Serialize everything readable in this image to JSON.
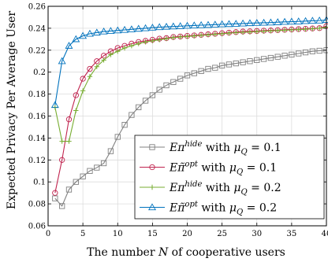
{
  "chart_data": {
    "type": "line",
    "xlabel_prefix": "The number ",
    "xlabel_var": "N",
    "xlabel_suffix": " of cooperative users",
    "ylabel": "Expected Privacy Per Average User",
    "xlim": [
      0,
      40
    ],
    "ylim": [
      0.06,
      0.26
    ],
    "xticks": [
      0,
      5,
      10,
      15,
      20,
      25,
      30,
      35,
      40
    ],
    "yticks": [
      0.06,
      0.08,
      0.1,
      0.12,
      0.14,
      0.16,
      0.18,
      0.2,
      0.22,
      0.24,
      0.26
    ],
    "xtick_labels": [
      "0",
      "5",
      "10",
      "15",
      "20",
      "25",
      "30",
      "35",
      "40"
    ],
    "ytick_labels": [
      "0.06",
      "0.08",
      "0.1",
      "0.12",
      "0.14",
      "0.16",
      "0.18",
      "0.2",
      "0.22",
      "0.24",
      "0.26"
    ],
    "grid": true,
    "legend_position": "bottom-right",
    "x": [
      1,
      2,
      3,
      4,
      5,
      6,
      7,
      8,
      9,
      10,
      11,
      12,
      13,
      14,
      15,
      16,
      17,
      18,
      19,
      20,
      21,
      22,
      23,
      24,
      25,
      26,
      27,
      28,
      29,
      30,
      31,
      32,
      33,
      34,
      35,
      36,
      37,
      38,
      39,
      40
    ],
    "series": [
      {
        "name_var": "Eπ",
        "name_sup": "hide",
        "name_mid": " with ",
        "name_mu": "μ",
        "name_sub": "Q",
        "name_eq": " = 0.1",
        "color": "#808080",
        "marker": "square",
        "values": [
          0.085,
          0.078,
          0.093,
          0.1,
          0.105,
          0.11,
          0.113,
          0.117,
          0.128,
          0.141,
          0.152,
          0.161,
          0.168,
          0.174,
          0.179,
          0.184,
          0.188,
          0.191,
          0.194,
          0.197,
          0.199,
          0.201,
          0.203,
          0.204,
          0.206,
          0.207,
          0.208,
          0.209,
          0.21,
          0.211,
          0.212,
          0.213,
          0.214,
          0.215,
          0.216,
          0.217,
          0.218,
          0.219,
          0.2195,
          0.22
        ]
      },
      {
        "name_var": "Eπ̃",
        "name_sup": "opt",
        "name_mid": " with ",
        "name_mu": "μ",
        "name_sub": "Q",
        "name_eq": " = 0.1",
        "color": "#c0234e",
        "marker": "circle",
        "values": [
          0.09,
          0.12,
          0.157,
          0.179,
          0.194,
          0.203,
          0.21,
          0.215,
          0.219,
          0.222,
          0.224,
          0.226,
          0.2275,
          0.2285,
          0.2295,
          0.2305,
          0.231,
          0.232,
          0.2325,
          0.233,
          0.2335,
          0.234,
          0.2345,
          0.235,
          0.2355,
          0.236,
          0.2365,
          0.237,
          0.2372,
          0.2375,
          0.2378,
          0.238,
          0.2383,
          0.2386,
          0.2389,
          0.2392,
          0.2395,
          0.2398,
          0.2401,
          0.242
        ]
      },
      {
        "name_var": "Eπ",
        "name_sup": "hide",
        "name_mid": " with ",
        "name_mu": "μ",
        "name_sub": "Q",
        "name_eq": " = 0.2",
        "color": "#77ac30",
        "marker": "plus",
        "values": [
          0.168,
          0.137,
          0.137,
          0.165,
          0.183,
          0.196,
          0.205,
          0.211,
          0.216,
          0.219,
          0.222,
          0.224,
          0.226,
          0.2275,
          0.2285,
          0.2295,
          0.2305,
          0.2315,
          0.232,
          0.2325,
          0.233,
          0.2335,
          0.234,
          0.2345,
          0.235,
          0.2355,
          0.236,
          0.2363,
          0.2366,
          0.237,
          0.2373,
          0.2376,
          0.2379,
          0.2382,
          0.2385,
          0.2388,
          0.2391,
          0.2395,
          0.24,
          0.241
        ]
      },
      {
        "name_var": "Eπ̃",
        "name_sup": "opt",
        "name_mid": " with ",
        "name_mu": "μ",
        "name_sub": "Q",
        "name_eq": " = 0.2",
        "color": "#0072bd",
        "marker": "triangle",
        "values": [
          0.17,
          0.21,
          0.224,
          0.23,
          0.233,
          0.235,
          0.236,
          0.237,
          0.2375,
          0.238,
          0.2385,
          0.239,
          0.2395,
          0.24,
          0.2405,
          0.241,
          0.2413,
          0.2416,
          0.2419,
          0.2422,
          0.2425,
          0.2428,
          0.243,
          0.2433,
          0.2436,
          0.2438,
          0.244,
          0.2443,
          0.2446,
          0.2448,
          0.245,
          0.2452,
          0.2455,
          0.2458,
          0.246,
          0.2462,
          0.2465,
          0.2468,
          0.247,
          0.2475
        ]
      }
    ]
  }
}
